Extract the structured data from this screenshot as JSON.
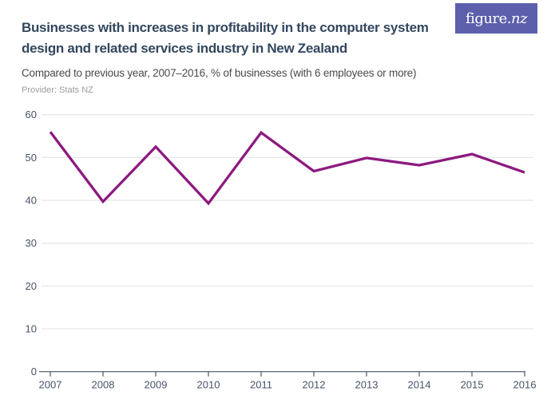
{
  "logo": {
    "text_main": "figure.",
    "text_italic": "nz",
    "bg_color": "#5C5FAB",
    "text_color": "#ffffff"
  },
  "header": {
    "title_line1": "Businesses with increases in profitability in the computer system",
    "title_line2": "design and related services industry in New Zealand",
    "subtitle": "Compared to previous year, 2007–2016, % of businesses (with 6 employees or more)",
    "provider": "Provider: Stats NZ"
  },
  "chart_data": {
    "type": "line",
    "title": "Businesses with increases in profitability in the computer system design and related services industry in New Zealand",
    "subtitle": "Compared to previous year, 2007–2016, % of businesses (with 6 employees or more)",
    "categories": [
      2007,
      2008,
      2009,
      2010,
      2011,
      2012,
      2013,
      2014,
      2015,
      2016
    ],
    "values": [
      56.0,
      39.7,
      52.5,
      39.3,
      55.8,
      46.8,
      49.9,
      48.2,
      50.8,
      46.5
    ],
    "xlabel": "",
    "ylabel": "",
    "ylim": [
      0,
      60
    ],
    "yticks": [
      0,
      10,
      20,
      30,
      40,
      50,
      60
    ],
    "grid": true,
    "legend": false,
    "line_color": "#8C1A7F",
    "grid_color": "#E8E8E8",
    "axis_color": "#4D5466",
    "tick_label_color": "#47536A"
  }
}
